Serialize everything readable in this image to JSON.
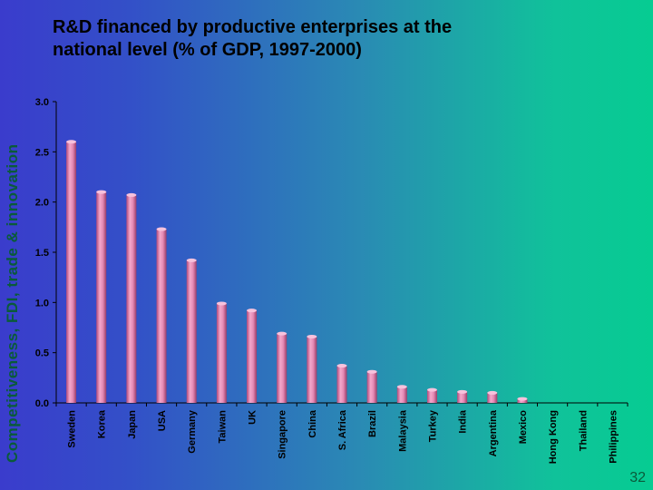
{
  "slide": {
    "side_title": "Competitiveness, FDI, trade & innovation",
    "page_number": "32"
  },
  "chart_data": {
    "type": "bar",
    "title": "R&D financed by productive enterprises at the national level (% of GDP, 1997-2000)",
    "title_line1": "R&D financed by productive enterprises at the",
    "title_line2": "national level (% of GDP, 1997-2000)",
    "xlabel": "",
    "ylabel": "",
    "ylim": [
      0,
      3.0
    ],
    "yticks": [
      "0.0",
      "0.5",
      "1.0",
      "1.5",
      "2.0",
      "2.5",
      "3.0"
    ],
    "categories": [
      "Sweden",
      "Korea",
      "Japan",
      "USA",
      "Germany",
      "Taiwan",
      "UK",
      "Singapore",
      "China",
      "S. Africa",
      "Brazil",
      "Malaysia",
      "Turkey",
      "India",
      "Argentina",
      "Mexico",
      "Hong Kong",
      "Thailand",
      "Philippines"
    ],
    "values": [
      2.6,
      2.1,
      2.07,
      1.73,
      1.42,
      0.99,
      0.92,
      0.69,
      0.66,
      0.37,
      0.31,
      0.16,
      0.13,
      0.11,
      0.1,
      0.04,
      0.0,
      0.0,
      0.0
    ],
    "colors": {
      "bar": "#e07aa8",
      "axis": "#000000"
    }
  }
}
